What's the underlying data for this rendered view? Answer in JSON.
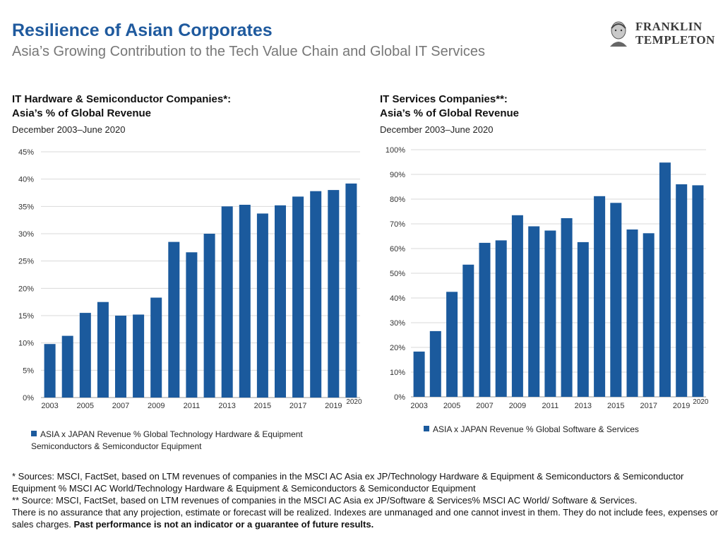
{
  "header": {
    "title": "Resilience of Asian Corporates",
    "subtitle": "Asia’s Growing Contribution to the Tech Value Chain and Global IT Services"
  },
  "logo": {
    "line1": "FRANKLIN",
    "line2": "TEMPLETON"
  },
  "colors": {
    "bar": "#1b5a9d",
    "title": "#1f5a9e",
    "grid": "#d9d9d9"
  },
  "chart_data": [
    {
      "type": "bar",
      "title_line1": "IT Hardware & Semiconductor Companies*:",
      "title_line2": "Asia’s % of Global Revenue",
      "subtitle": "December 2003–June 2020",
      "x_ticks": [
        "2003",
        "2005",
        "2007",
        "2009",
        "2011",
        "2013",
        "2015",
        "2017",
        "2019",
        "2020"
      ],
      "y_ticks": [
        "0%",
        "5%",
        "10%",
        "15%",
        "20%",
        "25%",
        "30%",
        "35%",
        "40%",
        "45%"
      ],
      "ylim": [
        0,
        45
      ],
      "x": [
        2003,
        2004,
        2005,
        2006,
        2007,
        2008,
        2009,
        2010,
        2011,
        2012,
        2013,
        2014,
        2015,
        2016,
        2017,
        2018,
        2019,
        2020
      ],
      "series": [
        {
          "name": "ASIA x JAPAN Revenue % Global  Technology Hardware & Equipment Semiconductors & Semiconductor Equipment",
          "values": [
            9.8,
            11.3,
            15.5,
            17.5,
            15.0,
            15.2,
            18.3,
            28.5,
            26.6,
            30.0,
            35.0,
            35.3,
            33.7,
            35.2,
            36.8,
            37.8,
            38.0,
            39.2
          ]
        }
      ],
      "grid": true,
      "legend": "bottom-left"
    },
    {
      "type": "bar",
      "title_line1": "IT Services Companies**:",
      "title_line2": "Asia’s % of Global Revenue",
      "subtitle": "December 2003–June 2020",
      "x_ticks": [
        "2003",
        "2005",
        "2007",
        "2009",
        "2011",
        "2013",
        "2015",
        "2017",
        "2019",
        "2020"
      ],
      "y_ticks": [
        "0%",
        "10%",
        "20%",
        "30%",
        "40%",
        "50%",
        "60%",
        "70%",
        "80%",
        "90%",
        "100%"
      ],
      "ylim": [
        0,
        100
      ],
      "x": [
        2003,
        2004,
        2005,
        2006,
        2007,
        2008,
        2009,
        2010,
        2011,
        2012,
        2013,
        2014,
        2015,
        2016,
        2017,
        2018,
        2019,
        2020
      ],
      "series": [
        {
          "name": "ASIA x JAPAN Revenue % Global  Software & Services",
          "values": [
            18.3,
            26.6,
            42.5,
            53.5,
            62.3,
            63.3,
            73.5,
            69.0,
            67.3,
            72.3,
            62.6,
            81.2,
            78.5,
            67.7,
            66.2,
            94.8,
            86.0,
            85.6
          ]
        }
      ],
      "grid": true,
      "legend": "bottom-left"
    }
  ],
  "footnotes": {
    "note1": "* Sources: MSCI, FactSet, based on LTM revenues of companies in the MSCI AC Asia ex JP/Technology Hardware & Equipment & Semiconductors & Semiconductor Equipment % MSCI AC World/Technology Hardware & Equipment & Semiconductors & Semiconductor Equipment",
    "note2": "** Source: MSCI, FactSet, based on LTM revenues of companies in the MSCI AC Asia ex JP/Software & Services% MSCI AC World/ Software & Services.",
    "note3": " There is no assurance that any projection, estimate or forecast will be realized. Indexes are unmanaged and one cannot invest in them. They do not include fees, expenses or sales charges. ",
    "note3_bold": "Past performance is not an indicator or a guarantee of future results."
  }
}
